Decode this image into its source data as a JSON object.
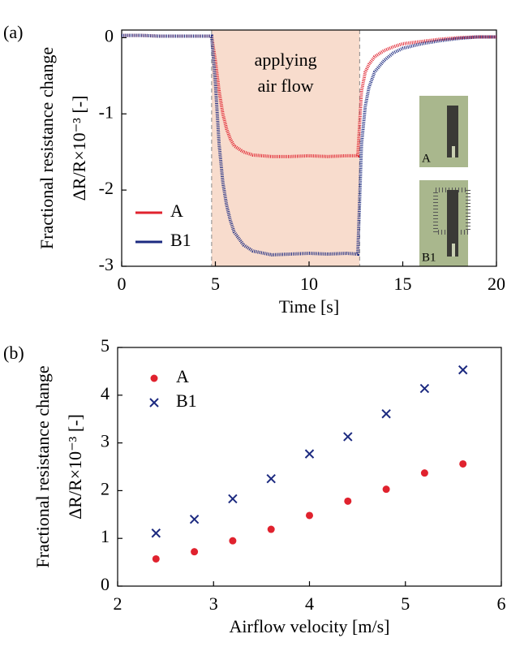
{
  "chart_data": [
    {
      "type": "line",
      "panel_label": "(a)",
      "x_label": "Time [s]",
      "y_label": [
        "Fractional resistance change",
        "ΔR/R×10⁻³ [-]"
      ],
      "annotation": [
        "applying",
        "air flow"
      ],
      "shaded_span": [
        4.8,
        12.7
      ],
      "inset_labels": [
        "A",
        "B1"
      ],
      "legend": "lower left",
      "xlim": [
        0,
        20
      ],
      "ylim": [
        -3,
        0.1
      ],
      "xticks": [
        0,
        5,
        10,
        15,
        20
      ],
      "yticks": [
        0,
        -1,
        -2,
        -3
      ],
      "x": [
        0,
        1,
        2,
        3,
        4,
        4.8,
        5.0,
        5.2,
        5.4,
        5.6,
        5.8,
        6.0,
        6.5,
        7,
        8,
        9,
        10,
        11,
        12,
        12.6,
        12.8,
        13.0,
        13.2,
        13.5,
        14,
        14.5,
        15,
        16,
        17,
        18,
        19,
        20
      ],
      "series": [
        {
          "name": "A",
          "color": "#e0222e",
          "values": [
            0.03,
            0.03,
            0.02,
            0.02,
            0.02,
            0.02,
            -0.3,
            -0.7,
            -1.0,
            -1.2,
            -1.33,
            -1.42,
            -1.5,
            -1.54,
            -1.56,
            -1.56,
            -1.55,
            -1.56,
            -1.55,
            -1.55,
            -0.7,
            -0.45,
            -0.35,
            -0.25,
            -0.17,
            -0.12,
            -0.08,
            -0.05,
            -0.02,
            0,
            0.01,
            0.01
          ]
        },
        {
          "name": "B1",
          "color": "#1c2a80",
          "values": [
            0.03,
            0.03,
            0.02,
            0.02,
            0.02,
            0.02,
            -0.6,
            -1.4,
            -1.9,
            -2.2,
            -2.4,
            -2.55,
            -2.72,
            -2.8,
            -2.85,
            -2.84,
            -2.83,
            -2.84,
            -2.83,
            -2.84,
            -1.4,
            -0.9,
            -0.65,
            -0.45,
            -0.3,
            -0.2,
            -0.14,
            -0.08,
            -0.04,
            -0.01,
            0.01,
            0.01
          ]
        }
      ]
    },
    {
      "type": "scatter",
      "panel_label": "(b)",
      "x_label": "Airflow velocity [m/s]",
      "y_label": [
        "Fractional resistance change",
        "ΔR/R×10⁻³ [-]"
      ],
      "legend": "upper left",
      "xlim": [
        2,
        6
      ],
      "ylim": [
        0,
        5
      ],
      "xticks": [
        2,
        3,
        4,
        5,
        6
      ],
      "yticks": [
        0,
        1,
        2,
        3,
        4,
        5
      ],
      "x": [
        2.4,
        2.8,
        3.2,
        3.6,
        4.0,
        4.4,
        4.8,
        5.2,
        5.6
      ],
      "series": [
        {
          "name": "A",
          "color": "#e0222e",
          "marker": "o",
          "values": [
            0.57,
            0.72,
            0.95,
            1.19,
            1.48,
            1.78,
            2.03,
            2.37,
            2.56
          ]
        },
        {
          "name": "B1",
          "color": "#1c2a80",
          "marker": "x",
          "values": [
            1.11,
            1.4,
            1.83,
            2.25,
            2.77,
            3.13,
            3.61,
            4.14,
            4.53
          ]
        }
      ]
    }
  ]
}
